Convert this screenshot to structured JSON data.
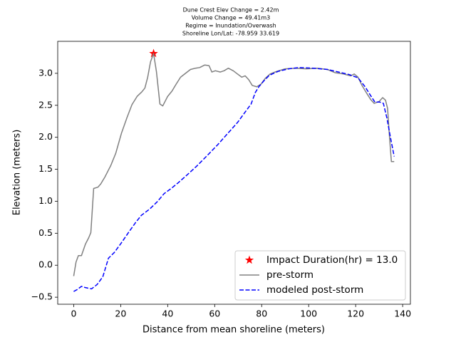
{
  "chart_data": {
    "type": "line",
    "title_lines": [
      "Dune Crest Elev Change = 2.42m",
      "Volume Change = 49.41m3",
      "Regime = Inundation/Overwash",
      "Shoreline Lon/Lat: -78.959 33.619"
    ],
    "x_label": "Distance from mean shoreline (meters)",
    "y_label": "Elevation (meters)",
    "xlim": [
      -6.8,
      143.3
    ],
    "ylim": [
      -0.61,
      3.5
    ],
    "xticks": [
      0,
      20,
      40,
      60,
      80,
      100,
      120,
      140
    ],
    "yticks": [
      {
        "value": -0.5,
        "label": "−0.5"
      },
      {
        "value": 0,
        "label": "0.0"
      },
      {
        "value": 0.5,
        "label": "0.5"
      },
      {
        "value": 1,
        "label": "1.0"
      },
      {
        "value": 1.5,
        "label": "1.5"
      },
      {
        "value": 2,
        "label": "2.0"
      },
      {
        "value": 2.5,
        "label": "2.5"
      },
      {
        "value": 3,
        "label": "3.0"
      }
    ],
    "legend": "lower right",
    "series": [
      {
        "name": "Impact Duration(hr) = 13.0",
        "style": "star",
        "color": "#ff0000",
        "x": [
          34
        ],
        "values": [
          3.31
        ]
      },
      {
        "name": "pre-storm",
        "style": "solid",
        "color": "#808080",
        "x": [
          0,
          1,
          2,
          3.3,
          5,
          6.4,
          7.3,
          8.5,
          10.3,
          11.5,
          13.3,
          15.8,
          17.9,
          20.3,
          22.7,
          24.8,
          27,
          29,
          30.3,
          31.5,
          32.7,
          34,
          35.2,
          36.7,
          37.9,
          40,
          41.8,
          43.6,
          45.5,
          47.6,
          49.7,
          51.8,
          53.6,
          55.8,
          57.6,
          58.8,
          60.3,
          62.4,
          64,
          65.8,
          67.9,
          69.7,
          71.5,
          73,
          74.5,
          76,
          77.9,
          79.7,
          81.5,
          83.6,
          86.4,
          90,
          94.5,
          99,
          103.6,
          108,
          111.2,
          114.8,
          117.9,
          119.4,
          121,
          122.7,
          124.5,
          126.4,
          127.9,
          130,
          131.5,
          132.7,
          133.6,
          134.2,
          135.2,
          136.4
        ],
        "values": [
          -0.17,
          0.05,
          0.15,
          0.15,
          0.33,
          0.43,
          0.51,
          1.2,
          1.22,
          1.27,
          1.38,
          1.56,
          1.75,
          2.06,
          2.31,
          2.51,
          2.64,
          2.71,
          2.77,
          2.94,
          3.18,
          3.31,
          3.03,
          2.52,
          2.49,
          2.64,
          2.72,
          2.83,
          2.94,
          3.0,
          3.06,
          3.08,
          3.09,
          3.13,
          3.12,
          3.02,
          3.04,
          3.02,
          3.04,
          3.08,
          3.04,
          2.99,
          2.94,
          2.96,
          2.9,
          2.81,
          2.79,
          2.83,
          2.92,
          2.99,
          3.03,
          3.07,
          3.08,
          3.07,
          3.08,
          3.06,
          3.01,
          2.99,
          2.96,
          2.99,
          2.94,
          2.81,
          2.7,
          2.59,
          2.53,
          2.56,
          2.62,
          2.58,
          2.45,
          2.11,
          1.62,
          1.62
        ]
      },
      {
        "name": "modeled post-storm",
        "style": "dashed",
        "color": "#0000ff",
        "x": [
          0,
          1.5,
          3.3,
          5,
          7.6,
          10,
          12.4,
          14.8,
          17.3,
          20.3,
          23.3,
          26.4,
          28.8,
          32.4,
          35.5,
          38.5,
          41.5,
          44.5,
          48.2,
          52.1,
          56.7,
          61.2,
          65.8,
          69.7,
          73.3,
          75.5,
          77.3,
          78.8,
          80.9,
          83.3,
          87,
          91.5,
          96,
          102,
          108,
          112.7,
          117.3,
          121,
          124,
          126.4,
          128.2,
          130.3,
          131.8,
          133.3,
          134.8,
          136.4
        ],
        "values": [
          -0.41,
          -0.38,
          -0.33,
          -0.35,
          -0.37,
          -0.3,
          -0.18,
          0.11,
          0.2,
          0.35,
          0.51,
          0.67,
          0.78,
          0.88,
          0.99,
          1.12,
          1.2,
          1.29,
          1.41,
          1.54,
          1.71,
          1.88,
          2.07,
          2.23,
          2.41,
          2.52,
          2.7,
          2.79,
          2.88,
          2.97,
          3.03,
          3.07,
          3.09,
          3.08,
          3.06,
          3.02,
          2.98,
          2.93,
          2.79,
          2.65,
          2.55,
          2.55,
          2.53,
          2.3,
          2.0,
          1.7
        ]
      }
    ]
  }
}
